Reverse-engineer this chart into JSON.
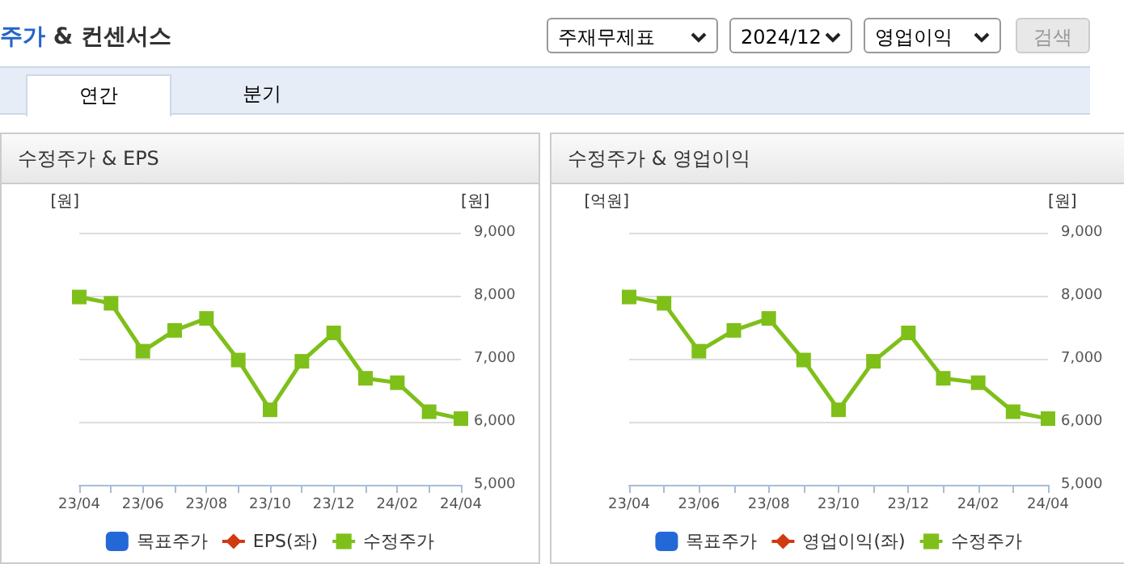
{
  "chart_data": [
    {
      "type": "other",
      "title": "주가 & 컨센서스",
      "annotations": [
        "주재무제표",
        "2024/12",
        "영업이익",
        "검색",
        "연간",
        "분기"
      ]
    },
    {
      "type": "line",
      "title": "수정주가 & EPS",
      "ylabel": "[원]",
      "y2label": "[원]",
      "categories": [
        "23/04",
        null,
        "23/06",
        null,
        "23/08",
        null,
        "23/10",
        null,
        "23/12",
        null,
        "24/02",
        null,
        "24/04"
      ],
      "series": [
        {
          "name": "목표주가",
          "type": "bar",
          "color": "#2468d8",
          "values": [
            null,
            null,
            null,
            null,
            null,
            null,
            null,
            null,
            null,
            null,
            null,
            null,
            null
          ]
        },
        {
          "name": "EPS(좌)",
          "type": "line",
          "marker": "diamond",
          "color": "#d03a10",
          "values": [
            null,
            null,
            null,
            null,
            null,
            null,
            null,
            null,
            null,
            null,
            null,
            null,
            null
          ]
        },
        {
          "name": "수정주가",
          "type": "line",
          "marker": "square",
          "axis": "y2",
          "color": "#7fbf1a",
          "values": [
            7980,
            7880,
            7120,
            7450,
            7640,
            6980,
            6190,
            6960,
            7410,
            6690,
            6620,
            6160,
            6050
          ]
        }
      ],
      "y2lim": [
        5000,
        9000
      ],
      "y2ticks": [
        {
          "value": 5000,
          "label": "5,000"
        },
        {
          "value": 6000,
          "label": "6,000"
        },
        {
          "value": 7000,
          "label": "7,000"
        },
        {
          "value": 8000,
          "label": "8,000"
        },
        {
          "value": 9000,
          "label": "9,000"
        }
      ],
      "grid": "y",
      "legend": "bottom"
    },
    {
      "type": "line",
      "title": "수정주가 & 영업이익",
      "ylabel": "[억원]",
      "y2label": "[원]",
      "categories": [
        "23/04",
        null,
        "23/06",
        null,
        "23/08",
        null,
        "23/10",
        null,
        "23/12",
        null,
        "24/02",
        null,
        "24/04"
      ],
      "series": [
        {
          "name": "목표주가",
          "type": "bar",
          "color": "#2468d8",
          "values": [
            null,
            null,
            null,
            null,
            null,
            null,
            null,
            null,
            null,
            null,
            null,
            null,
            null
          ]
        },
        {
          "name": "영업이익(좌)",
          "type": "line",
          "marker": "diamond",
          "color": "#d03a10",
          "values": [
            null,
            null,
            null,
            null,
            null,
            null,
            null,
            null,
            null,
            null,
            null,
            null,
            null
          ]
        },
        {
          "name": "수정주가",
          "type": "line",
          "marker": "square",
          "axis": "y2",
          "color": "#7fbf1a",
          "values": [
            7980,
            7880,
            7120,
            7450,
            7640,
            6980,
            6190,
            6960,
            7410,
            6690,
            6620,
            6160,
            6050
          ]
        }
      ],
      "y2lim": [
        5000,
        9000
      ],
      "y2ticks": [
        {
          "value": 5000,
          "label": "5,000"
        },
        {
          "value": 6000,
          "label": "6,000"
        },
        {
          "value": 7000,
          "label": "7,000"
        },
        {
          "value": 8000,
          "label": "8,000"
        },
        {
          "value": 9000,
          "label": "9,000"
        }
      ],
      "grid": "y",
      "legend": "bottom"
    }
  ]
}
